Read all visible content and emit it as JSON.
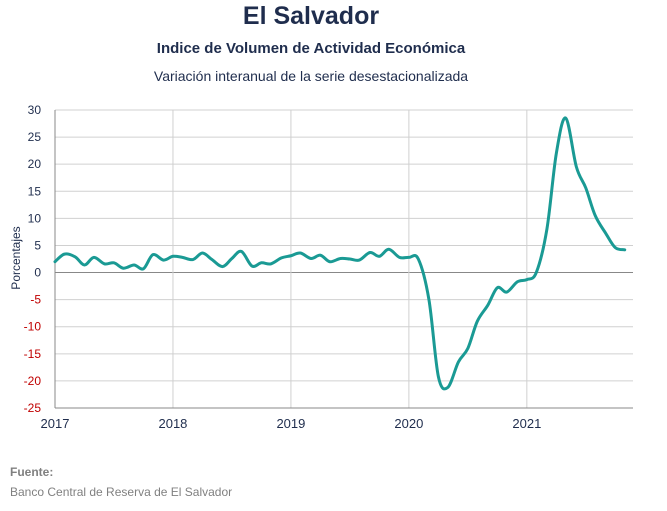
{
  "chart_data": {
    "type": "line",
    "title": "El Salvador",
    "subtitle": "Indice de Volumen de  Actividad Económica",
    "subtitle2": "Variación interanual de la serie desestacionalizada",
    "ylabel": "Porcentajes",
    "xlabel": "",
    "ylim": [
      -25,
      30
    ],
    "yticks": [
      30,
      25,
      20,
      15,
      10,
      5,
      0,
      -5,
      -10,
      -15,
      -20,
      -25
    ],
    "xlim": [
      2017.0,
      2021.9
    ],
    "xticks": [
      {
        "value": 2017,
        "label": "2017"
      },
      {
        "value": 2018,
        "label": "2018"
      },
      {
        "value": 2019,
        "label": "2019"
      },
      {
        "value": 2020,
        "label": "2020"
      },
      {
        "value": 2021,
        "label": "2021"
      }
    ],
    "grid": true,
    "colors": {
      "line": "#1a9a94",
      "negative_tick": "#c00000",
      "text": "#1f2d4d",
      "grid": "#d0d0d0",
      "zero_line": "#888888"
    },
    "series": [
      {
        "values": [
          [
            2017.0,
            2.0
          ],
          [
            2017.08,
            3.4
          ],
          [
            2017.17,
            2.9
          ],
          [
            2017.25,
            1.4
          ],
          [
            2017.33,
            2.8
          ],
          [
            2017.42,
            1.6
          ],
          [
            2017.5,
            1.8
          ],
          [
            2017.58,
            0.8
          ],
          [
            2017.67,
            1.4
          ],
          [
            2017.75,
            0.7
          ],
          [
            2017.83,
            3.3
          ],
          [
            2017.92,
            2.3
          ],
          [
            2018.0,
            3.0
          ],
          [
            2018.08,
            2.8
          ],
          [
            2018.17,
            2.4
          ],
          [
            2018.25,
            3.6
          ],
          [
            2018.33,
            2.4
          ],
          [
            2018.42,
            1.1
          ],
          [
            2018.5,
            2.6
          ],
          [
            2018.58,
            3.9
          ],
          [
            2018.67,
            1.2
          ],
          [
            2018.75,
            1.8
          ],
          [
            2018.83,
            1.6
          ],
          [
            2018.92,
            2.7
          ],
          [
            2019.0,
            3.1
          ],
          [
            2019.08,
            3.6
          ],
          [
            2019.17,
            2.6
          ],
          [
            2019.25,
            3.2
          ],
          [
            2019.33,
            2.0
          ],
          [
            2019.42,
            2.6
          ],
          [
            2019.5,
            2.5
          ],
          [
            2019.58,
            2.3
          ],
          [
            2019.67,
            3.7
          ],
          [
            2019.75,
            3.0
          ],
          [
            2019.83,
            4.3
          ],
          [
            2019.92,
            2.8
          ],
          [
            2020.0,
            2.8
          ],
          [
            2020.08,
            2.5
          ],
          [
            2020.17,
            -5.0
          ],
          [
            2020.25,
            -19.2
          ],
          [
            2020.33,
            -21.2
          ],
          [
            2020.42,
            -16.5
          ],
          [
            2020.5,
            -14.0
          ],
          [
            2020.58,
            -9.0
          ],
          [
            2020.67,
            -6.0
          ],
          [
            2020.75,
            -2.8
          ],
          [
            2020.83,
            -3.6
          ],
          [
            2020.92,
            -1.7
          ],
          [
            2021.0,
            -1.3
          ],
          [
            2021.08,
            0.0
          ],
          [
            2021.17,
            8.0
          ],
          [
            2021.25,
            22.0
          ],
          [
            2021.33,
            28.5
          ],
          [
            2021.42,
            19.5
          ],
          [
            2021.5,
            15.6
          ],
          [
            2021.58,
            10.5
          ],
          [
            2021.67,
            7.2
          ],
          [
            2021.75,
            4.6
          ],
          [
            2021.83,
            4.2
          ]
        ]
      }
    ]
  },
  "source": {
    "label": "Fuente:",
    "text": "Banco Central de Reserva de El Salvador"
  }
}
